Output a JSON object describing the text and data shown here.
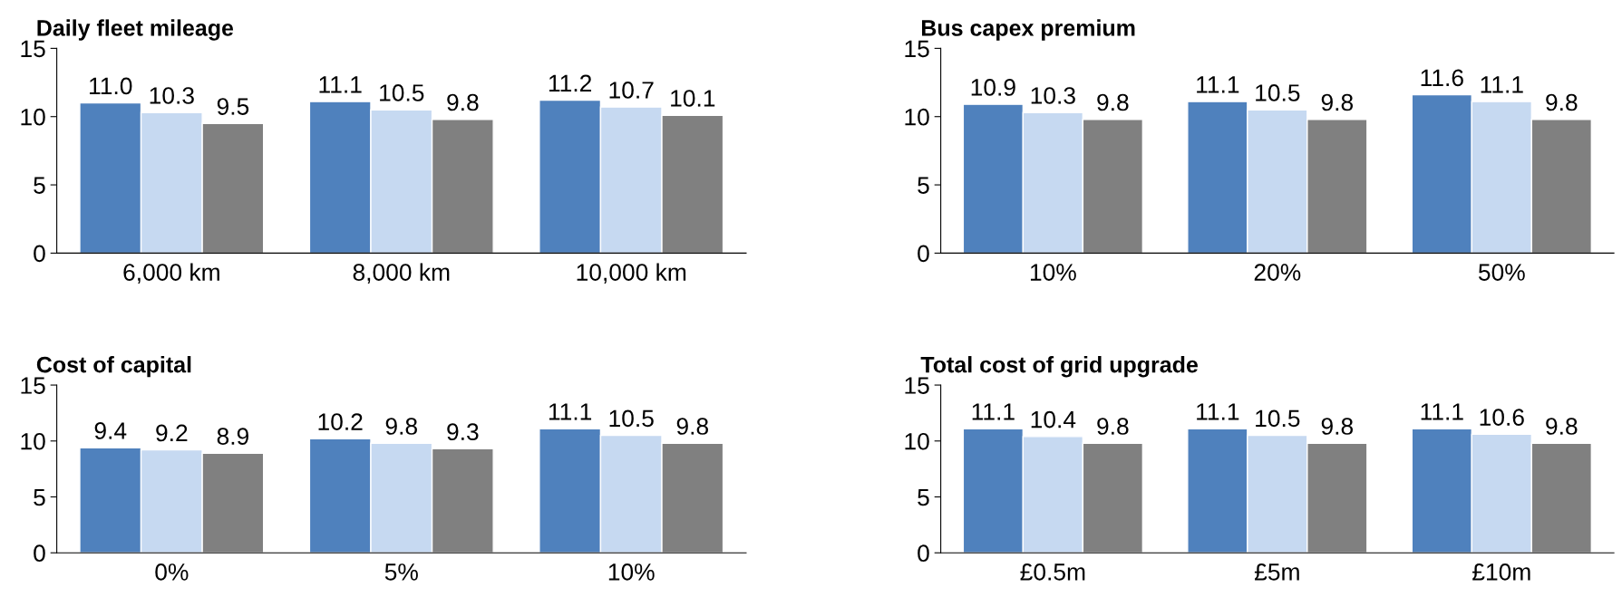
{
  "chart_data": [
    {
      "type": "bar",
      "title": "Daily fleet mileage",
      "categories": [
        "6,000 km",
        "8,000 km",
        "10,000 km"
      ],
      "ylim": [
        0,
        15
      ],
      "yticks": [
        0,
        5,
        10,
        15
      ],
      "grid": false,
      "legend": false,
      "series": [
        {
          "color": "#4f81bd",
          "values": [
            11.0,
            11.1,
            11.2
          ],
          "value_labels": [
            "11.0",
            "11.1",
            "11.2"
          ]
        },
        {
          "color": "#c6d9f1",
          "values": [
            10.3,
            10.5,
            10.7
          ],
          "value_labels": [
            "10.3",
            "10.5",
            "10.7"
          ]
        },
        {
          "color": "#808080",
          "values": [
            9.5,
            9.8,
            10.1
          ],
          "value_labels": [
            "9.5",
            "9.8",
            "10.1"
          ]
        }
      ]
    },
    {
      "type": "bar",
      "title": "Bus capex premium",
      "categories": [
        "10%",
        "20%",
        "50%"
      ],
      "ylim": [
        0,
        15
      ],
      "yticks": [
        0,
        5,
        10,
        15
      ],
      "grid": false,
      "legend": false,
      "series": [
        {
          "color": "#4f81bd",
          "values": [
            10.9,
            11.1,
            11.6
          ],
          "value_labels": [
            "10.9",
            "11.1",
            "11.6"
          ]
        },
        {
          "color": "#c6d9f1",
          "values": [
            10.3,
            10.5,
            11.1
          ],
          "value_labels": [
            "10.3",
            "10.5",
            "11.1"
          ]
        },
        {
          "color": "#808080",
          "values": [
            9.8,
            9.8,
            9.8
          ],
          "value_labels": [
            "9.8",
            "9.8",
            "9.8"
          ]
        }
      ]
    },
    {
      "type": "bar",
      "title": "Cost of capital",
      "categories": [
        "0%",
        "5%",
        "10%"
      ],
      "ylim": [
        0,
        15
      ],
      "yticks": [
        0,
        5,
        10,
        15
      ],
      "grid": false,
      "legend": false,
      "series": [
        {
          "color": "#4f81bd",
          "values": [
            9.4,
            10.2,
            11.1
          ],
          "value_labels": [
            "9.4",
            "10.2",
            "11.1"
          ]
        },
        {
          "color": "#c6d9f1",
          "values": [
            9.2,
            9.8,
            10.5
          ],
          "value_labels": [
            "9.2",
            "9.8",
            "10.5"
          ]
        },
        {
          "color": "#808080",
          "values": [
            8.9,
            9.3,
            9.8
          ],
          "value_labels": [
            "8.9",
            "9.3",
            "9.8"
          ]
        }
      ]
    },
    {
      "type": "bar",
      "title": "Total cost of grid upgrade",
      "categories": [
        "£0.5m",
        "£5m",
        "£10m"
      ],
      "ylim": [
        0,
        15
      ],
      "yticks": [
        0,
        5,
        10,
        15
      ],
      "grid": false,
      "legend": false,
      "series": [
        {
          "color": "#4f81bd",
          "values": [
            11.1,
            11.1,
            11.1
          ],
          "value_labels": [
            "11.1",
            "11.1",
            "11.1"
          ]
        },
        {
          "color": "#c6d9f1",
          "values": [
            10.4,
            10.5,
            10.6
          ],
          "value_labels": [
            "10.4",
            "10.5",
            "10.6"
          ]
        },
        {
          "color": "#808080",
          "values": [
            9.8,
            9.8,
            9.8
          ],
          "value_labels": [
            "9.8",
            "9.8",
            "9.8"
          ]
        }
      ]
    }
  ]
}
